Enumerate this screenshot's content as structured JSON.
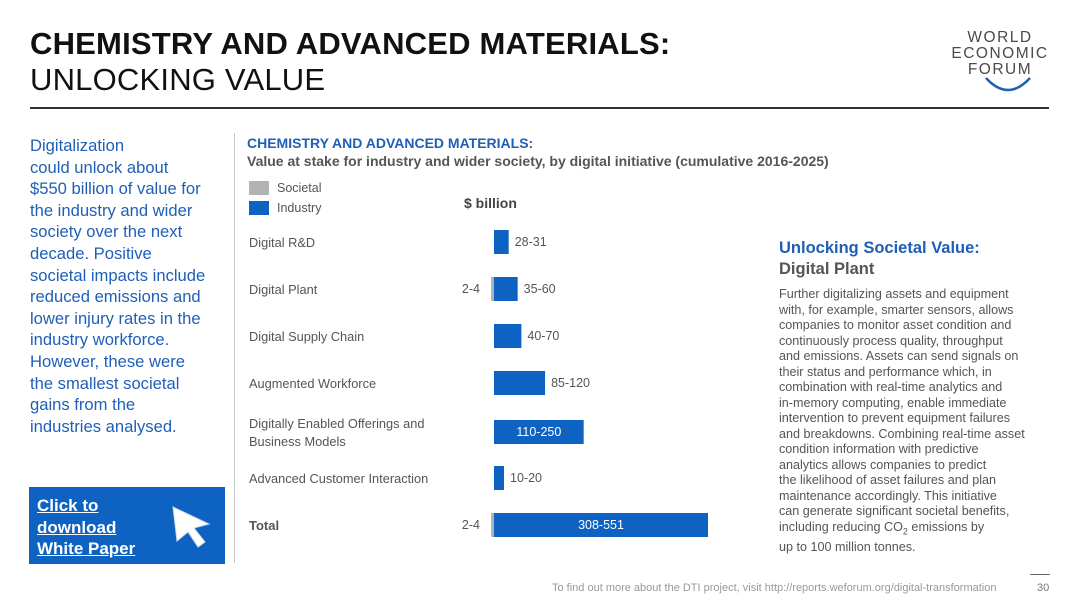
{
  "header": {
    "title_line1": "CHEMISTRY AND ADVANCED MATERIALS:",
    "title_line2": "UNLOCKING VALUE",
    "logo_lines": [
      "WORLD",
      "ECONOMIC",
      "FORUM"
    ]
  },
  "intro": {
    "lines": [
      "Digitalization",
      "could unlock about",
      "$550 billion of value for",
      "the industry and wider",
      "society over the next",
      "decade. Positive",
      "societal impacts include",
      "reduced emissions and",
      "lower injury rates in the",
      "industry workforce.",
      "However, these were",
      "the smallest societal",
      "gains from the",
      "industries analysed."
    ]
  },
  "cta": {
    "lines": [
      "Click to",
      "download",
      "White Paper"
    ]
  },
  "chart_data": {
    "type": "bar",
    "orientation": "horizontal",
    "title": "CHEMISTRY AND ADVANCED MATERIALS:",
    "subtitle": "Value at stake for industry and wider society, by digital initiative (cumulative 2016-2025)",
    "unit": "$ billion",
    "legend": [
      {
        "name": "Societal",
        "color": "#b3b3b3"
      },
      {
        "name": "Industry",
        "color": "#0e63c2"
      }
    ],
    "categories": [
      {
        "label_lines": [
          "Digital R&D"
        ],
        "bold": false
      },
      {
        "label_lines": [
          "Digital Plant"
        ],
        "bold": false
      },
      {
        "label_lines": [
          "Digital Supply Chain"
        ],
        "bold": false
      },
      {
        "label_lines": [
          "Augmented Workforce"
        ],
        "bold": false
      },
      {
        "label_lines": [
          "Digitally Enabled Offerings and",
          "Business Models"
        ],
        "bold": false
      },
      {
        "label_lines": [
          "Advanced Customer Interaction"
        ],
        "bold": false
      },
      {
        "label_lines": [
          "Total"
        ],
        "bold": true
      }
    ],
    "series": [
      {
        "name": "Industry",
        "color": "#0e63c2",
        "values": [
          29.5,
          47.5,
          55,
          102.5,
          180,
          15,
          429.5
        ],
        "labels": [
          "28-31",
          "35-60",
          "40-70",
          "85-120",
          "110-250",
          "10-20",
          "308-551"
        ]
      },
      {
        "name": "Societal",
        "color": "#b3b3b3",
        "values": [
          0,
          3,
          0,
          0,
          0,
          0,
          3
        ],
        "labels": [
          "",
          "2-4",
          "",
          "",
          "",
          "",
          "2-4"
        ]
      }
    ]
  },
  "sidebar": {
    "title": "Unlocking Societal Value:",
    "subtitle": "Digital Plant",
    "body_lines": [
      "Further digitalizing assets and equipment",
      "with, for example, smarter sensors, allows",
      "companies to monitor asset condition and",
      "continuously process quality, throughput",
      "and emissions. Assets can send signals on",
      "their status and performance which, in",
      "combination with real-time analytics and",
      "in-memory computing, enable immediate",
      "intervention to prevent equipment failures",
      "and breakdowns. Combining real-time asset",
      "condition information with predictive",
      "analytics allows companies to predict",
      "the likelihood of asset failures and plan",
      "maintenance accordingly. This initiative",
      "can generate significant societal benefits,"
    ],
    "co2_pre": "including reducing CO",
    "co2_sub": "2",
    "co2_post": " emissions by",
    "last_line": "up to 100 million tonnes."
  },
  "footer": {
    "text": "To find out more about the DTI project, visit http://reports.weforum.org/digital-transformation",
    "page_number": "30"
  }
}
